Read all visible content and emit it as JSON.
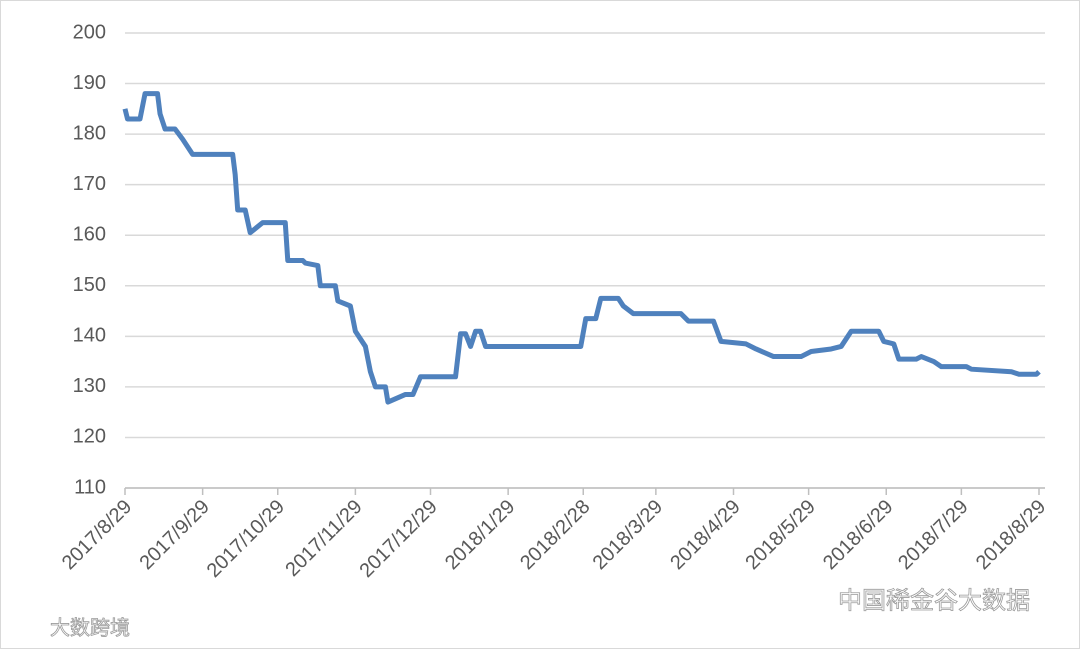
{
  "chart_data": {
    "type": "line",
    "x": [
      "2017/8/29",
      "2017/8/30",
      "2017/9/4",
      "2017/9/6",
      "2017/9/11",
      "2017/9/12",
      "2017/9/14",
      "2017/9/18",
      "2017/9/21",
      "2017/9/25",
      "2017/10/11",
      "2017/10/12",
      "2017/10/13",
      "2017/10/16",
      "2017/10/18",
      "2017/10/23",
      "2017/11/1",
      "2017/11/2",
      "2017/11/8",
      "2017/11/9",
      "2017/11/14",
      "2017/11/15",
      "2017/11/21",
      "2017/11/22",
      "2017/11/27",
      "2017/11/29",
      "2017/12/3",
      "2017/12/5",
      "2017/12/7",
      "2017/12/11",
      "2017/12/12",
      "2017/12/19",
      "2017/12/22",
      "2017/12/25",
      "2018/1/8",
      "2018/1/10",
      "2018/1/12",
      "2018/1/14",
      "2018/1/16",
      "2018/1/18",
      "2018/1/20",
      "2018/2/27",
      "2018/3/1",
      "2018/3/5",
      "2018/3/7",
      "2018/3/14",
      "2018/3/16",
      "2018/3/20",
      "2018/4/8",
      "2018/4/11",
      "2018/4/21",
      "2018/4/24",
      "2018/5/4",
      "2018/5/8",
      "2018/5/15",
      "2018/5/26",
      "2018/5/30",
      "2018/6/7",
      "2018/6/11",
      "2018/6/15",
      "2018/6/26",
      "2018/6/28",
      "2018/7/2",
      "2018/7/4",
      "2018/7/11",
      "2018/7/13",
      "2018/7/18",
      "2018/7/21",
      "2018/7/31",
      "2018/8/2",
      "2018/8/18",
      "2018/8/21",
      "2018/8/28",
      "2018/8/29"
    ],
    "series": [
      {
        "color": "#4f81bd",
        "values": [
          185,
          183,
          183,
          188,
          188,
          184,
          181,
          181,
          179,
          176,
          176,
          172,
          165,
          165,
          160.5,
          162.5,
          162.5,
          155,
          155,
          154.5,
          154,
          150,
          150,
          147,
          146,
          141,
          138,
          133,
          130,
          130,
          127,
          128.5,
          128.5,
          132,
          132,
          140.5,
          140.5,
          138,
          141,
          141,
          138,
          138,
          143.5,
          143.5,
          147.5,
          147.5,
          146,
          144.5,
          144.5,
          143,
          143,
          139,
          138.5,
          137.5,
          136,
          136,
          137,
          137.5,
          138,
          141,
          141,
          139,
          138.5,
          135.5,
          135.5,
          136,
          135,
          134,
          134,
          133.5,
          133,
          132.5,
          132.5,
          133
        ]
      }
    ],
    "xlim": [
      "2017/8/29",
      "2018/8/29"
    ],
    "xticks": [
      "2017/8/29",
      "2017/9/29",
      "2017/10/29",
      "2017/11/29",
      "2017/12/29",
      "2018/1/29",
      "2018/2/28",
      "2018/3/29",
      "2018/4/29",
      "2018/5/29",
      "2018/6/29",
      "2018/7/29",
      "2018/8/29"
    ],
    "ylim": [
      110,
      200
    ],
    "yticks": [
      110,
      120,
      130,
      140,
      150,
      160,
      170,
      180,
      190,
      200
    ],
    "grid": true
  },
  "watermarks": [
    "中国稀金谷大数据",
    "大数跨境"
  ]
}
